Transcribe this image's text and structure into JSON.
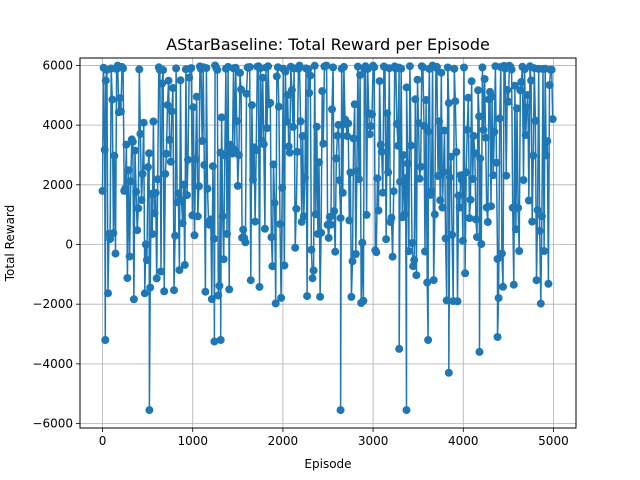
{
  "chart_data": {
    "type": "line",
    "title": "AStarBaseline: Total Reward per Episode",
    "xlabel": "Episode",
    "ylabel": "Total Reward",
    "xlim": [
      -250,
      5250
    ],
    "ylim": [
      -6150,
      6250
    ],
    "x_ticks": [
      0,
      1000,
      2000,
      3000,
      4000,
      5000
    ],
    "y_ticks": [
      -6000,
      -4000,
      -2000,
      0,
      2000,
      4000,
      6000
    ],
    "x_tick_labels": [
      "0",
      "1000",
      "2000",
      "3000",
      "4000",
      "5000"
    ],
    "y_tick_labels": [
      "−6000",
      "−4000",
      "−2000",
      "0",
      "2000",
      "4000",
      "6000"
    ],
    "grid": true,
    "legend": "none",
    "marker": "circle",
    "color": "#1f77b4",
    "series_summary": {
      "episodes": 5000,
      "x_start": 0,
      "x_end": 5000,
      "upper_bound": 6000,
      "typical_floor": -2000
    },
    "outliers": [
      {
        "x": 30,
        "y": -3200
      },
      {
        "x": 520,
        "y": -5550
      },
      {
        "x": 1240,
        "y": -3250
      },
      {
        "x": 1310,
        "y": -3200
      },
      {
        "x": 2640,
        "y": -5550
      },
      {
        "x": 3290,
        "y": -3500
      },
      {
        "x": 3370,
        "y": -5550
      },
      {
        "x": 3610,
        "y": -3200
      },
      {
        "x": 3840,
        "y": -4300
      },
      {
        "x": 4180,
        "y": -3600
      },
      {
        "x": 4380,
        "y": -3100
      }
    ]
  }
}
